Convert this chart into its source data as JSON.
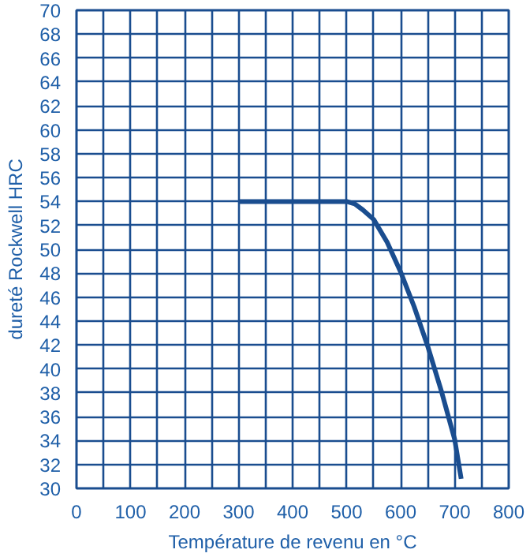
{
  "chart_data": {
    "type": "line",
    "xlabel": "Température de revenu en °C",
    "ylabel": "dureté Rockwell HRC",
    "x": [
      300,
      400,
      500,
      515,
      530,
      550,
      575,
      600,
      625,
      650,
      675,
      700,
      712
    ],
    "series": [
      {
        "color": "#1a4d8f",
        "values": [
          54,
          54,
          54,
          53.8,
          53.3,
          52.5,
          50.6,
          48.1,
          45.2,
          41.9,
          38.2,
          34.1,
          30.8
        ]
      }
    ],
    "xlim": [
      0,
      800
    ],
    "ylim": [
      30,
      70
    ],
    "xticks": [
      0,
      {
        "value": 50,
        "label": null
      },
      100,
      {
        "value": 150,
        "label": null
      },
      200,
      {
        "value": 250,
        "label": null
      },
      300,
      {
        "value": 350,
        "label": null
      },
      400,
      {
        "value": 450,
        "label": null
      },
      500,
      {
        "value": 550,
        "label": null
      },
      600,
      {
        "value": 650,
        "label": null
      },
      700,
      {
        "value": 750,
        "label": null
      },
      800
    ],
    "yticks": [
      30,
      32,
      34,
      36,
      38,
      40,
      42,
      44,
      46,
      48,
      50,
      52,
      54,
      56,
      58,
      60,
      62,
      64,
      66,
      68,
      70
    ],
    "grid": true,
    "marker": "none",
    "line_style": "solid"
  }
}
